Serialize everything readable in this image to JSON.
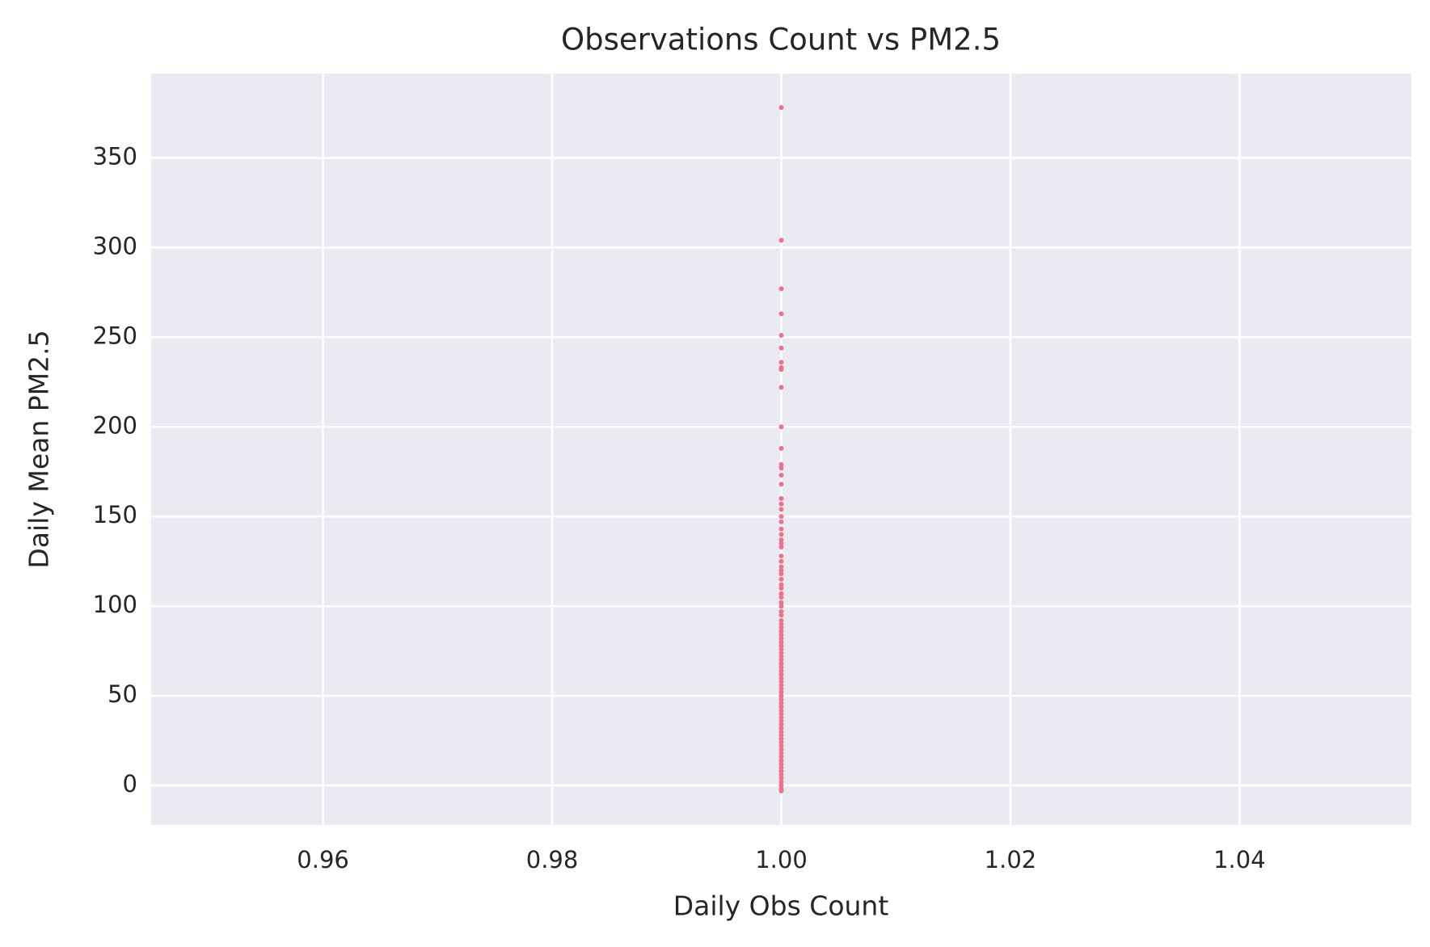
{
  "chart_data": {
    "type": "scatter",
    "title": "Observations Count vs PM2.5",
    "x_label": "Daily Obs Count",
    "y_label": "Daily Mean PM2.5",
    "color": "#f0718b",
    "grid": true,
    "xlim": [
      0.945,
      1.055
    ],
    "ylim": [
      -22,
      397
    ],
    "xticks": [
      0.96,
      0.98,
      {
        "value": 1,
        "label": "1.00"
      },
      1.02,
      1.04
    ],
    "yticks": [
      0,
      50,
      100,
      150,
      200,
      250,
      300,
      350
    ],
    "x": [
      1,
      1,
      1,
      1,
      1,
      1,
      1,
      1,
      1,
      1,
      1,
      1,
      1,
      1,
      1,
      1,
      1,
      1,
      1,
      1,
      1,
      1,
      1,
      1,
      1,
      1,
      1,
      1,
      1,
      1,
      1,
      1,
      1,
      1,
      1,
      1,
      1,
      1,
      1,
      1,
      1,
      1,
      1,
      1,
      1,
      1,
      1,
      1,
      1,
      1,
      1,
      1,
      1,
      1,
      1,
      1,
      1,
      1,
      1,
      1,
      1,
      1,
      1,
      1,
      1,
      1,
      1,
      1,
      1,
      1,
      1,
      1,
      1,
      1,
      1,
      1,
      1,
      1,
      1,
      1,
      1,
      1,
      1,
      1,
      1,
      1,
      1,
      1,
      1
    ],
    "y": [
      378,
      304,
      277,
      263,
      251,
      244,
      236,
      233,
      232,
      222,
      200,
      188,
      179,
      177,
      173,
      168,
      160,
      157,
      154,
      150,
      147,
      143,
      140,
      137,
      135,
      133,
      128,
      125,
      122,
      120,
      118,
      115,
      112,
      110,
      107,
      105,
      102,
      100,
      97,
      95,
      92,
      90,
      88,
      86,
      84,
      82,
      80,
      78,
      76,
      74,
      72,
      70,
      68,
      66,
      64,
      62,
      60,
      58,
      56,
      54,
      52,
      50,
      48,
      46,
      44,
      42,
      40,
      38,
      36,
      34,
      32,
      30,
      28,
      26,
      24,
      22,
      20,
      18,
      16,
      14,
      12,
      10,
      8,
      6,
      4,
      2,
      0,
      -2,
      -3
    ]
  }
}
